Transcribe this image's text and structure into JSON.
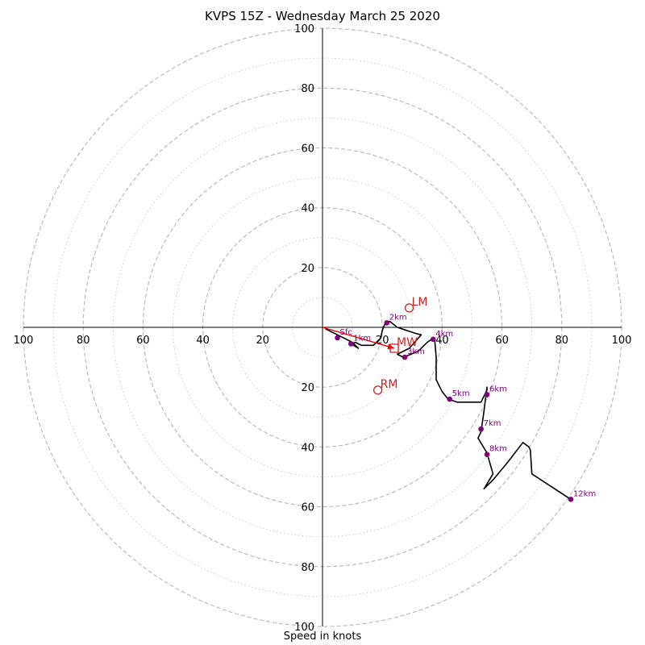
{
  "chart_data": {
    "type": "scatter",
    "subtype": "hodograph",
    "title": "KVPS 15Z - Wednesday March 25 2020",
    "xlabel": "Speed in knots",
    "ylabel": "",
    "xlim": [
      -100,
      100
    ],
    "ylim": [
      -100,
      100
    ],
    "ring_major": [
      20,
      40,
      60,
      80,
      100
    ],
    "ring_minor": [
      10,
      30,
      50,
      70,
      90
    ],
    "x_tick_labels": [
      "100",
      "80",
      "60",
      "40",
      "20",
      "20",
      "40",
      "60",
      "80",
      "100"
    ],
    "y_tick_labels": [
      "100",
      "80",
      "60",
      "40",
      "20",
      "20",
      "40",
      "60",
      "80",
      "100"
    ],
    "wind_trace": [
      [
        1,
        -0.5
      ],
      [
        5,
        -2.5
      ],
      [
        10,
        -5
      ],
      [
        12,
        -7
      ],
      [
        9.5,
        -5.5
      ],
      [
        11,
        -5
      ],
      [
        13,
        -6
      ],
      [
        17,
        -6
      ],
      [
        18,
        -5
      ],
      [
        19.5,
        -3.5
      ],
      [
        20,
        -1
      ],
      [
        21,
        1.5
      ],
      [
        22.5,
        2
      ],
      [
        25,
        0
      ],
      [
        31,
        -2
      ],
      [
        33,
        -2.5
      ],
      [
        29,
        -7
      ],
      [
        25,
        -9
      ],
      [
        27,
        -10
      ],
      [
        32,
        -8
      ],
      [
        35,
        -5
      ],
      [
        36.5,
        -4
      ],
      [
        37.5,
        -4
      ],
      [
        38,
        -10
      ],
      [
        38,
        -17.5
      ],
      [
        40,
        -21.5
      ],
      [
        42,
        -24
      ],
      [
        45,
        -25
      ],
      [
        53,
        -25
      ],
      [
        55,
        -21
      ],
      [
        55,
        -20
      ],
      [
        54,
        -28
      ],
      [
        53,
        -35
      ],
      [
        52,
        -37
      ],
      [
        55,
        -42
      ],
      [
        57,
        -49
      ],
      [
        54,
        -54
      ],
      [
        57,
        -51
      ],
      [
        62,
        -45
      ],
      [
        67,
        -38.5
      ],
      [
        69,
        -40
      ],
      [
        69.5,
        -41
      ],
      [
        70,
        -49
      ],
      [
        83,
        -57.5
      ]
    ],
    "height_points": [
      {
        "label": "Sfc",
        "u": 5,
        "v": -3.5
      },
      {
        "label": "1km",
        "u": 9.5,
        "v": -5.5
      },
      {
        "label": "2km",
        "u": 21.5,
        "v": 1.5
      },
      {
        "label": "3km",
        "u": 27.5,
        "v": -10
      },
      {
        "label": "4km",
        "u": 37,
        "v": -4
      },
      {
        "label": "5km",
        "u": 42.5,
        "v": -24
      },
      {
        "label": "6km",
        "u": 55,
        "v": -22.5
      },
      {
        "label": "7km",
        "u": 53,
        "v": -34
      },
      {
        "label": "8km",
        "u": 55,
        "v": -42.5
      },
      {
        "label": "12km",
        "u": 83,
        "v": -57.5
      }
    ],
    "storm_motions": [
      {
        "label": "LM",
        "u": 29,
        "v": 6.5,
        "marker": "circle"
      },
      {
        "label": "MW",
        "u": 24,
        "v": -7,
        "marker": "square"
      },
      {
        "label": "RM",
        "u": 18.5,
        "v": -21,
        "marker": "circle"
      }
    ],
    "shear_arrow": {
      "from": [
        0,
        0
      ],
      "to": [
        24,
        -7
      ]
    },
    "colors": {
      "trace": "#000000",
      "height_points": "#800080",
      "storm_motion": "#cc2222",
      "arrow": "#ee0000",
      "ring_major": "#bbbbbb",
      "ring_minor": "#cccccc",
      "axes": "#000000"
    }
  }
}
